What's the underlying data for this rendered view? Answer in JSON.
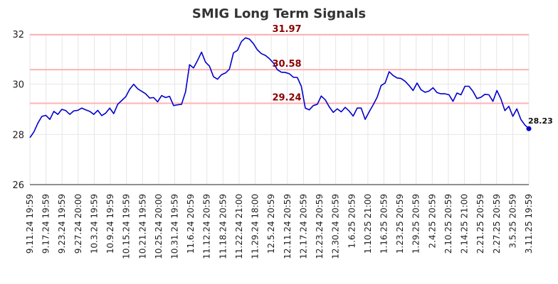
{
  "chart_data": {
    "type": "line",
    "title": "SMIG Long Term Signals",
    "xlabel": "",
    "ylabel": "",
    "ylim": [
      26,
      32
    ],
    "yticks": [
      26,
      28,
      30,
      32
    ],
    "grid": true,
    "colors": {
      "line": "#0000cc",
      "reference_line": "#ffb3b3",
      "reference_label": "#8b0000",
      "grid": "#e6e6e6",
      "last_point": "#0000cc"
    },
    "reference_lines": [
      {
        "value": 31.97,
        "label": "31.97"
      },
      {
        "value": 30.58,
        "label": "30.58"
      },
      {
        "value": 29.24,
        "label": "29.24"
      }
    ],
    "last_point": {
      "value": 28.23,
      "label": "28.23"
    },
    "x_tick_labels": [
      "9.11.24 19:59",
      "9.17.24 19:59",
      "9.23.24 19:59",
      "9.27.24 20:00",
      "10.3.24 19:59",
      "10.9.24 19:59",
      "10.15.24 19:59",
      "10.21.24 19:59",
      "10.25.24 20:00",
      "10.31.24 19:59",
      "11.6.24 20:59",
      "11.12.24 20:59",
      "11.18.24 20:59",
      "11.22.24 21:00",
      "11.29.24 18:00",
      "12.5.24 20:59",
      "12.11.24 20:59",
      "12.17.24 20:59",
      "12.23.24 20:59",
      "12.30.24 20:59",
      "1.6.25 20:59",
      "1.10.25 21:00",
      "1.16.25 20:59",
      "1.23.25 20:59",
      "1.29.25 20:59",
      "2.4.25 20:59",
      "2.10.25 20:59",
      "2.14.25 21:00",
      "2.21.25 20:59",
      "2.27.25 20:59",
      "3.5.25 20:59",
      "3.11.25 19:59"
    ],
    "series": [
      {
        "values": [
          27.87,
          28.1,
          28.45,
          28.72,
          28.76,
          28.6,
          28.92,
          28.8,
          29.0,
          28.95,
          28.8,
          28.94,
          28.96,
          29.05,
          28.98,
          28.92,
          28.8,
          28.96,
          28.75,
          28.85,
          29.05,
          28.83,
          29.2,
          29.35,
          29.5,
          29.8,
          30.0,
          29.82,
          29.72,
          29.62,
          29.45,
          29.47,
          29.3,
          29.55,
          29.47,
          29.52,
          29.15,
          29.18,
          29.2,
          29.7,
          30.78,
          30.65,
          30.95,
          31.28,
          30.88,
          30.72,
          30.3,
          30.2,
          30.38,
          30.45,
          30.6,
          31.25,
          31.35,
          31.7,
          31.85,
          31.8,
          31.62,
          31.37,
          31.22,
          31.15,
          31.02,
          30.85,
          30.58,
          30.48,
          30.47,
          30.42,
          30.28,
          30.27,
          29.92,
          29.05,
          28.98,
          29.15,
          29.2,
          29.53,
          29.38,
          29.1,
          28.88,
          29.02,
          28.9,
          29.08,
          28.93,
          28.73,
          29.05,
          29.05,
          28.6,
          28.9,
          29.18,
          29.48,
          29.95,
          30.05,
          30.5,
          30.35,
          30.25,
          30.23,
          30.12,
          29.95,
          29.75,
          30.05,
          29.78,
          29.68,
          29.73,
          29.86,
          29.67,
          29.62,
          29.62,
          29.58,
          29.32,
          29.65,
          29.58,
          29.92,
          29.92,
          29.72,
          29.43,
          29.48,
          29.6,
          29.58,
          29.32,
          29.75,
          29.42,
          28.95,
          29.12,
          28.72,
          29.02,
          28.6,
          28.38,
          28.23
        ]
      }
    ]
  }
}
